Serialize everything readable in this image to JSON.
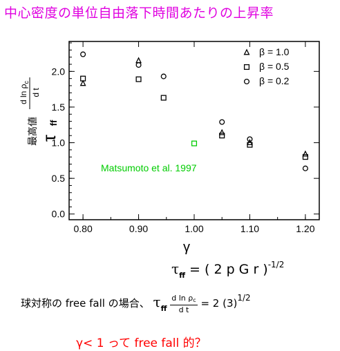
{
  "title": "中心密度の単位自由落下時間あたりの上昇率",
  "chart_data": {
    "type": "scatter",
    "xlabel": "γ",
    "ylabel_prefix": "最高値",
    "ylabel_tau": "τ",
    "ylabel_tau_sub": "ff",
    "ylabel_frac_num": "d ln ρ",
    "ylabel_frac_num_sub": "c",
    "ylabel_frac_den": "d t",
    "xlim": [
      0.775,
      1.225
    ],
    "ylim": [
      -0.08,
      2.42
    ],
    "x_ticks": [
      "0.80",
      "0.90",
      "1.00",
      "1.10",
      "1.20"
    ],
    "x_tick_values": [
      0.8,
      0.9,
      1.0,
      1.1,
      1.2
    ],
    "y_ticks": [
      "0.0",
      "0.5",
      "1.0",
      "1.5",
      "2.0"
    ],
    "y_tick_values": [
      0.0,
      0.5,
      1.0,
      1.5,
      2.0
    ],
    "legend_position": "top-right",
    "series": [
      {
        "name": "β = 1.0",
        "marker": "triangle",
        "color": "#000000",
        "x": [
          0.8,
          0.9,
          1.05,
          1.1,
          1.2
        ],
        "y": [
          1.83,
          2.15,
          1.14,
          1.0,
          0.84
        ]
      },
      {
        "name": "β = 0.5",
        "marker": "square",
        "color": "#000000",
        "x": [
          0.8,
          0.9,
          0.945,
          1.05,
          1.1,
          1.2
        ],
        "y": [
          1.9,
          1.89,
          1.63,
          1.1,
          0.97,
          0.8
        ]
      },
      {
        "name": "β = 0.2",
        "marker": "circle",
        "color": "#000000",
        "x": [
          0.8,
          0.9,
          0.945,
          1.05,
          1.1,
          1.2
        ],
        "y": [
          2.24,
          2.09,
          1.93,
          1.29,
          1.05,
          0.64
        ]
      },
      {
        "name": "",
        "marker": "square",
        "color": "#00cc00",
        "x": [
          1.0
        ],
        "y": [
          0.99
        ]
      }
    ],
    "annotations": [
      {
        "text": "Matsumoto et al. 1997",
        "color": "#00cc00"
      }
    ]
  },
  "eq1": {
    "tau": "τ",
    "sub": "ff",
    "body": " = ( 2 p G r )",
    "sup": "-1/2"
  },
  "eq2": {
    "prefix": "球対称の free fall の場合、",
    "tau": "τ",
    "sub": "ff",
    "num": "d ln ρ",
    "num_sub": "c",
    "den": "d t",
    "rhs": " = 2 (3)",
    "sup": "1/2"
  },
  "question": "γ< 1 って free fall 的？"
}
